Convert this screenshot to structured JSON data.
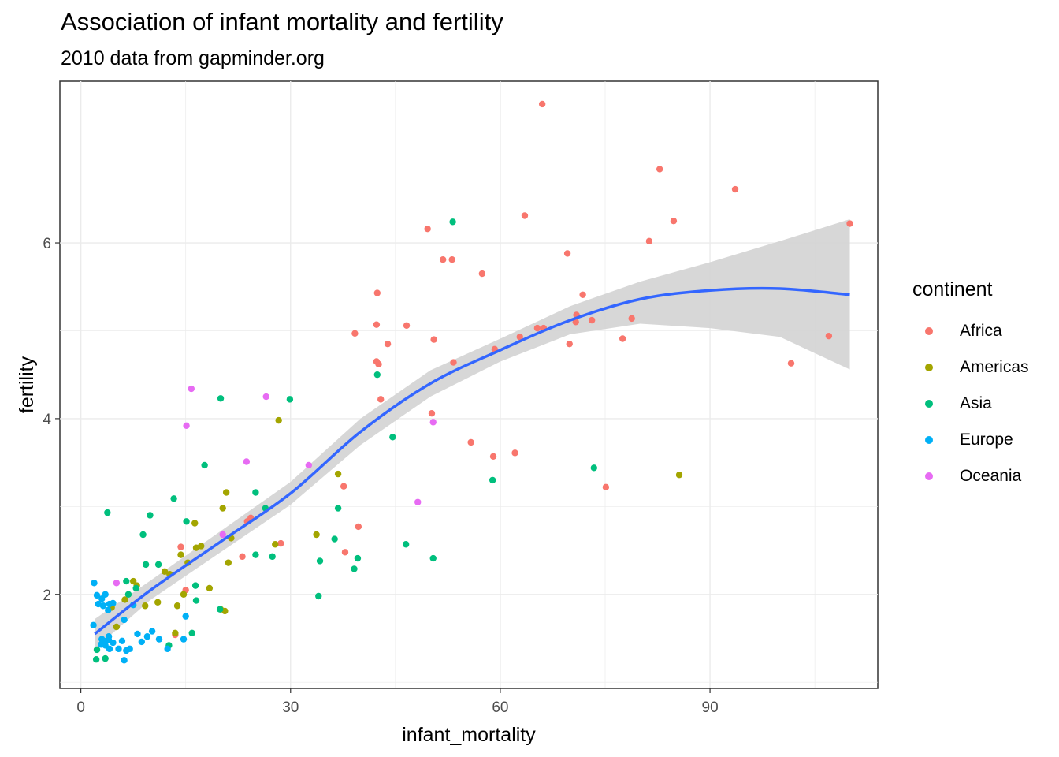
{
  "chart_data": {
    "type": "scatter",
    "title": "Association of infant mortality and fertility",
    "subtitle": "2010 data from gapminder.org",
    "xlabel": "infant_mortality",
    "ylabel": "fertility",
    "xlim": [
      -3,
      114
    ],
    "ylim": [
      0.93,
      7.84
    ],
    "xticks": [
      0,
      30,
      60,
      90
    ],
    "yticks": [
      2,
      4,
      6
    ],
    "xtick_labels": [
      "0",
      "30",
      "60",
      "90"
    ],
    "ytick_labels": [
      "2",
      "4",
      "6"
    ],
    "grid": true,
    "legend": {
      "title": "continent",
      "position": "right"
    },
    "series": [
      {
        "name": "Africa",
        "color": "#F8766D",
        "points": [
          [
            66.0,
            7.58
          ],
          [
            82.8,
            6.84
          ],
          [
            93.6,
            6.61
          ],
          [
            63.5,
            6.31
          ],
          [
            84.8,
            6.25
          ],
          [
            110.0,
            6.22
          ],
          [
            49.6,
            6.16
          ],
          [
            81.3,
            6.02
          ],
          [
            69.6,
            5.88
          ],
          [
            51.8,
            5.81
          ],
          [
            53.1,
            5.81
          ],
          [
            57.4,
            5.65
          ],
          [
            42.4,
            5.43
          ],
          [
            71.8,
            5.41
          ],
          [
            70.9,
            5.18
          ],
          [
            78.8,
            5.14
          ],
          [
            70.8,
            5.1
          ],
          [
            73.1,
            5.12
          ],
          [
            42.3,
            5.07
          ],
          [
            46.6,
            5.06
          ],
          [
            65.3,
            5.03
          ],
          [
            66.2,
            5.03
          ],
          [
            39.2,
            4.97
          ],
          [
            62.8,
            4.93
          ],
          [
            107.0,
            4.94
          ],
          [
            50.5,
            4.9
          ],
          [
            77.5,
            4.91
          ],
          [
            43.9,
            4.85
          ],
          [
            69.9,
            4.85
          ],
          [
            59.2,
            4.79
          ],
          [
            42.3,
            4.65
          ],
          [
            42.6,
            4.62
          ],
          [
            53.3,
            4.64
          ],
          [
            101.6,
            4.63
          ],
          [
            42.9,
            4.22
          ],
          [
            50.2,
            4.06
          ],
          [
            55.8,
            3.73
          ],
          [
            59.0,
            3.57
          ],
          [
            62.1,
            3.61
          ],
          [
            37.6,
            3.23
          ],
          [
            75.1,
            3.22
          ],
          [
            39.7,
            2.77
          ],
          [
            24.3,
            2.87
          ],
          [
            23.8,
            2.83
          ],
          [
            37.8,
            2.48
          ],
          [
            28.6,
            2.58
          ],
          [
            23.1,
            2.43
          ],
          [
            14.3,
            2.54
          ],
          [
            15.0,
            2.05
          ],
          [
            13.5,
            1.54
          ]
        ]
      },
      {
        "name": "Americas",
        "color": "#A3A500",
        "points": [
          [
            85.6,
            3.36
          ],
          [
            28.3,
            3.98
          ],
          [
            36.8,
            3.37
          ],
          [
            20.8,
            3.16
          ],
          [
            20.3,
            2.98
          ],
          [
            16.3,
            2.81
          ],
          [
            16.5,
            2.53
          ],
          [
            17.2,
            2.55
          ],
          [
            21.5,
            2.64
          ],
          [
            21.1,
            2.36
          ],
          [
            27.8,
            2.57
          ],
          [
            33.7,
            2.68
          ],
          [
            12.0,
            2.26
          ],
          [
            12.7,
            2.23
          ],
          [
            15.3,
            2.36
          ],
          [
            14.3,
            2.45
          ],
          [
            14.7,
            2.0
          ],
          [
            18.4,
            2.07
          ],
          [
            13.8,
            1.87
          ],
          [
            7.5,
            2.15
          ],
          [
            8.0,
            2.1
          ],
          [
            9.2,
            1.87
          ],
          [
            6.3,
            1.94
          ],
          [
            11.0,
            1.91
          ],
          [
            4.4,
            1.85
          ],
          [
            5.1,
            1.63
          ],
          [
            13.5,
            1.56
          ],
          [
            20.6,
            1.81
          ],
          [
            20.0,
            1.83
          ]
        ]
      },
      {
        "name": "Asia",
        "color": "#00BF7D",
        "points": [
          [
            53.2,
            6.24
          ],
          [
            29.9,
            4.22
          ],
          [
            42.4,
            4.5
          ],
          [
            20.0,
            4.23
          ],
          [
            73.4,
            3.44
          ],
          [
            58.9,
            3.3
          ],
          [
            44.6,
            3.79
          ],
          [
            17.7,
            3.47
          ],
          [
            13.3,
            3.09
          ],
          [
            25.0,
            3.16
          ],
          [
            26.4,
            2.98
          ],
          [
            36.8,
            2.98
          ],
          [
            9.9,
            2.9
          ],
          [
            3.8,
            2.93
          ],
          [
            15.1,
            2.83
          ],
          [
            8.9,
            2.68
          ],
          [
            36.3,
            2.63
          ],
          [
            46.5,
            2.57
          ],
          [
            27.4,
            2.43
          ],
          [
            25.0,
            2.45
          ],
          [
            39.6,
            2.41
          ],
          [
            50.4,
            2.41
          ],
          [
            34.2,
            2.38
          ],
          [
            39.1,
            2.29
          ],
          [
            11.1,
            2.34
          ],
          [
            9.3,
            2.34
          ],
          [
            16.4,
            2.1
          ],
          [
            16.5,
            1.93
          ],
          [
            7.9,
            2.07
          ],
          [
            6.8,
            2.0
          ],
          [
            12.6,
            1.42
          ],
          [
            15.9,
            1.56
          ],
          [
            2.2,
            1.26
          ],
          [
            3.5,
            1.27
          ],
          [
            19.9,
            1.83
          ],
          [
            34.0,
            1.98
          ],
          [
            2.3,
            1.37
          ],
          [
            6.5,
            2.15
          ]
        ]
      },
      {
        "name": "Europe",
        "color": "#00B0F6",
        "points": [
          [
            1.9,
            2.13
          ],
          [
            2.3,
            1.99
          ],
          [
            3.5,
            2.0
          ],
          [
            3.0,
            1.95
          ],
          [
            4.1,
            1.89
          ],
          [
            2.5,
            1.89
          ],
          [
            3.9,
            1.82
          ],
          [
            4.6,
            1.9
          ],
          [
            3.2,
            1.87
          ],
          [
            6.2,
            1.71
          ],
          [
            1.8,
            1.65
          ],
          [
            7.5,
            1.88
          ],
          [
            8.1,
            1.55
          ],
          [
            10.2,
            1.58
          ],
          [
            8.7,
            1.46
          ],
          [
            9.5,
            1.52
          ],
          [
            11.2,
            1.49
          ],
          [
            12.4,
            1.38
          ],
          [
            14.7,
            1.49
          ],
          [
            15.0,
            1.75
          ],
          [
            3.0,
            1.49
          ],
          [
            3.5,
            1.42
          ],
          [
            4.0,
            1.48
          ],
          [
            4.6,
            1.45
          ],
          [
            5.4,
            1.38
          ],
          [
            5.9,
            1.47
          ],
          [
            6.5,
            1.36
          ],
          [
            7.0,
            1.38
          ],
          [
            6.2,
            1.25
          ],
          [
            4.0,
            1.52
          ],
          [
            3.3,
            1.47
          ],
          [
            4.1,
            1.38
          ],
          [
            2.9,
            1.43
          ]
        ]
      },
      {
        "name": "Oceania",
        "color": "#E76BF3",
        "points": [
          [
            15.8,
            4.34
          ],
          [
            26.5,
            4.25
          ],
          [
            15.1,
            3.92
          ],
          [
            50.4,
            3.96
          ],
          [
            23.7,
            3.51
          ],
          [
            32.6,
            3.47
          ],
          [
            48.2,
            3.05
          ],
          [
            20.3,
            2.68
          ],
          [
            5.1,
            2.13
          ]
        ]
      }
    ],
    "smooth_fit": {
      "color": "#3366FF",
      "band_color": "#D3D3D3",
      "x": [
        2,
        10,
        20,
        30,
        40,
        50,
        60,
        70,
        80,
        90,
        100,
        110
      ],
      "y": [
        1.55,
        2.05,
        2.6,
        3.15,
        3.85,
        4.4,
        4.78,
        5.12,
        5.36,
        5.46,
        5.48,
        5.41
      ],
      "lower": [
        1.38,
        1.94,
        2.48,
        3.02,
        3.7,
        4.25,
        4.65,
        4.96,
        5.08,
        5.03,
        4.93,
        4.56
      ],
      "upper": [
        1.72,
        2.16,
        2.72,
        3.28,
        4.0,
        4.55,
        4.91,
        5.28,
        5.56,
        5.78,
        6.02,
        6.27
      ]
    }
  }
}
